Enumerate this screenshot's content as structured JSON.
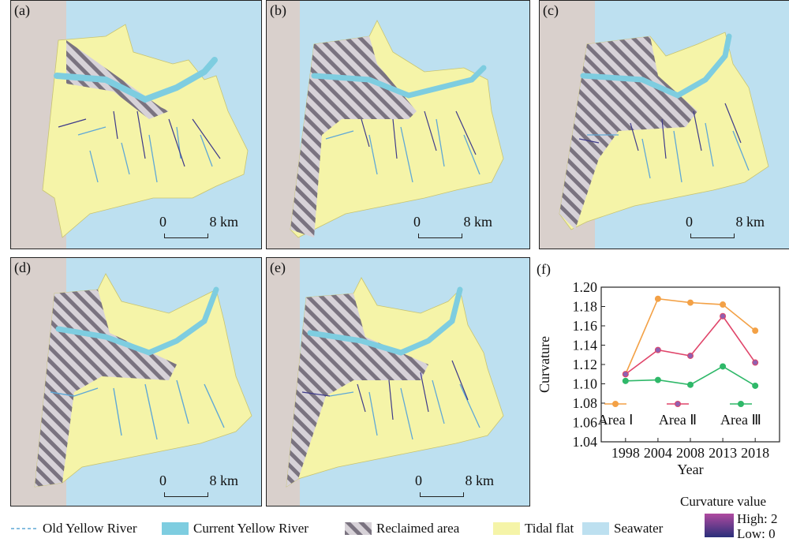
{
  "panels": [
    {
      "label": "(a)"
    },
    {
      "label": "(b)"
    },
    {
      "label": "(c)"
    },
    {
      "label": "(d)"
    },
    {
      "label": "(e)"
    }
  ],
  "scale": {
    "zero": "0",
    "eight": "8 km"
  },
  "legend": {
    "old_river": "Old Yellow River",
    "current_river": "Current Yellow River",
    "reclaimed": "Reclaimed area",
    "tidal_flat": "Tidal flat",
    "seawater": "Seawater",
    "curvature_title": "Curvature value",
    "high": "High: 2",
    "low": "Low: 0"
  },
  "colors": {
    "land": "#f5f4a8",
    "sea": "#bde0f0",
    "coast": "#d9d0cc",
    "river": "#7ecde0",
    "reclaimed_stripe": "#7a7380",
    "area1": "#f3a146",
    "area2": "#e0456a",
    "area3": "#2fb869",
    "marker1": "#f3a146",
    "marker2": "#9060b0",
    "marker3": "#2fb869"
  },
  "chart_data": {
    "type": "line",
    "panel_label": "(f)",
    "x": [
      "1998",
      "2004",
      "2008",
      "2013",
      "2018"
    ],
    "xlabel": "Year",
    "ylabel": "Curvature",
    "ylim": [
      1.04,
      1.2
    ],
    "yticks": [
      "1.04",
      "1.06",
      "1.08",
      "1.10",
      "1.12",
      "1.14",
      "1.16",
      "1.18",
      "1.20"
    ],
    "series": [
      {
        "name": "Area Ⅰ",
        "values": [
          1.11,
          1.188,
          1.184,
          1.182,
          1.155
        ]
      },
      {
        "name": "Area Ⅱ",
        "values": [
          1.11,
          1.135,
          1.129,
          1.17,
          1.122
        ]
      },
      {
        "name": "Area Ⅲ",
        "values": [
          1.103,
          1.104,
          1.099,
          1.118,
          1.098
        ]
      }
    ],
    "legend_position": "bottom-inside"
  }
}
